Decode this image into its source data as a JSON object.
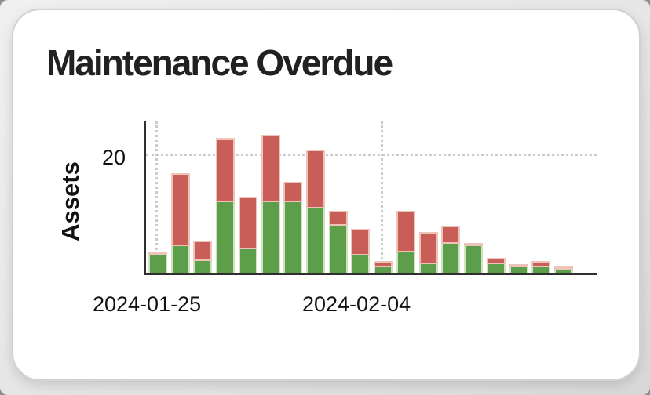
{
  "card": {
    "title": "Maintenance Overdue"
  },
  "chart_data": {
    "type": "bar",
    "stacked": true,
    "title": "Maintenance Overdue",
    "xlabel": "",
    "ylabel": "Assets",
    "ylim": [
      0,
      26
    ],
    "y_ticks": [
      20
    ],
    "x_tick_labels": [
      "2024-01-25",
      "2024-02-04"
    ],
    "grid": "dotted; horizontal gridline at y=20, vertical gridlines at 2024-01-25 and 2024-02-04",
    "legend": "none",
    "categories": [
      "2024-01-25",
      "2024-01-26",
      "2024-01-27",
      "2024-01-28",
      "2024-01-29",
      "2024-01-30",
      "2024-01-31",
      "2024-02-01",
      "2024-02-02",
      "2024-02-03",
      "2024-02-04",
      "2024-02-05",
      "2024-02-06",
      "2024-02-07",
      "2024-02-08",
      "2024-02-09",
      "2024-02-10",
      "2024-02-11",
      "2024-02-12"
    ],
    "series": [
      {
        "name": "green",
        "color": "#5d9e4b",
        "values": [
          3,
          4.5,
          2,
          12,
          4,
          12,
          12,
          11,
          8,
          3,
          1,
          3.5,
          1.5,
          5,
          4.5,
          1.5,
          1,
          1,
          0.5
        ]
      },
      {
        "name": "red",
        "color": "#c95d57",
        "values": [
          0.5,
          12.5,
          3.5,
          11,
          9,
          11.5,
          3.5,
          10,
          2.5,
          4.5,
          1,
          7,
          5.5,
          3,
          0.5,
          1,
          0.5,
          1,
          0.5
        ]
      }
    ],
    "totals": [
      3.5,
      17,
      5.5,
      23,
      13,
      23.5,
      15.5,
      21,
      10.5,
      7.5,
      2,
      10.5,
      7,
      8,
      5,
      2.5,
      1.5,
      2,
      1
    ]
  },
  "colors": {
    "green_segment": "#5d9e4b",
    "red_segment": "#c95d57",
    "axis": "#2f2f2f",
    "gridline": "#cbcbcb",
    "card_background": "#ffffff",
    "page_background": "#e3e3e3"
  }
}
